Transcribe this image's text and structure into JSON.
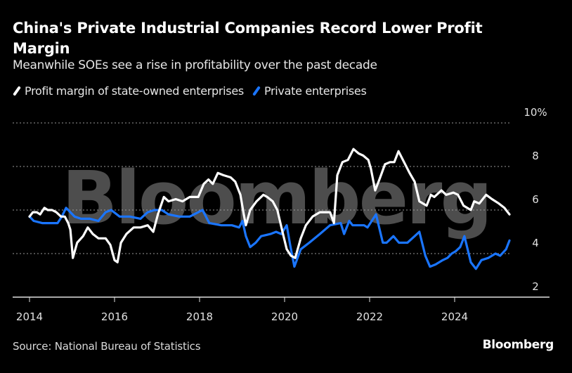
{
  "header": {
    "title": "China's Private Industrial Companies Record Lower Profit Margin",
    "subtitle": "Meanwhile SOEs see a rise in profitability over the past decade"
  },
  "footer": {
    "source": "Source: National Bureau of Statistics",
    "brand": "Bloomberg"
  },
  "watermark": "Bloomberg",
  "chart_data": {
    "type": "line",
    "title": "China's Private Industrial Companies Record Lower Profit Margin",
    "subtitle": "Meanwhile SOEs see a rise in profitability over the past decade",
    "xlabel": "",
    "ylabel": "",
    "xlim": [
      2013.95,
      2025.6
    ],
    "ylim": [
      2,
      10
    ],
    "x_ticks": [
      2014,
      2016,
      2018,
      2020,
      2022,
      2024
    ],
    "x_tick_labels": [
      "2014",
      "2016",
      "2018",
      "2020",
      "2022",
      "2024"
    ],
    "y_ticks": [
      2,
      4,
      6,
      8,
      10
    ],
    "y_tick_labels": [
      "2",
      "4",
      "6",
      "8",
      "10%"
    ],
    "grid": true,
    "legend_position": "top-left",
    "series": [
      {
        "name": "Profit margin of state-owned enterprises",
        "color": "#ffffff",
        "points": [
          [
            2014.0,
            5.7
          ],
          [
            2014.08,
            5.9
          ],
          [
            2014.17,
            5.9
          ],
          [
            2014.25,
            5.8
          ],
          [
            2014.35,
            6.1
          ],
          [
            2014.43,
            6.0
          ],
          [
            2014.53,
            6.0
          ],
          [
            2014.63,
            5.9
          ],
          [
            2014.74,
            5.7
          ],
          [
            2014.83,
            5.7
          ],
          [
            2014.91,
            5.4
          ],
          [
            2014.96,
            5.1
          ],
          [
            2015.02,
            3.8
          ],
          [
            2015.12,
            4.5
          ],
          [
            2015.26,
            4.8
          ],
          [
            2015.37,
            5.2
          ],
          [
            2015.49,
            4.9
          ],
          [
            2015.62,
            4.7
          ],
          [
            2015.79,
            4.7
          ],
          [
            2015.9,
            4.4
          ],
          [
            2016.0,
            3.7
          ],
          [
            2016.07,
            3.6
          ],
          [
            2016.15,
            4.5
          ],
          [
            2016.28,
            4.9
          ],
          [
            2016.45,
            5.2
          ],
          [
            2016.61,
            5.2
          ],
          [
            2016.78,
            5.3
          ],
          [
            2016.91,
            5.0
          ],
          [
            2017.02,
            5.8
          ],
          [
            2017.16,
            6.6
          ],
          [
            2017.27,
            6.4
          ],
          [
            2017.44,
            6.5
          ],
          [
            2017.6,
            6.4
          ],
          [
            2017.77,
            6.6
          ],
          [
            2017.97,
            6.6
          ],
          [
            2018.1,
            7.2
          ],
          [
            2018.21,
            7.4
          ],
          [
            2018.31,
            7.2
          ],
          [
            2018.43,
            7.7
          ],
          [
            2018.56,
            7.6
          ],
          [
            2018.73,
            7.5
          ],
          [
            2018.84,
            7.3
          ],
          [
            2018.96,
            6.7
          ],
          [
            2019.04,
            5.8
          ],
          [
            2019.09,
            5.3
          ],
          [
            2019.19,
            6.0
          ],
          [
            2019.34,
            6.4
          ],
          [
            2019.5,
            6.7
          ],
          [
            2019.59,
            6.6
          ],
          [
            2019.72,
            6.4
          ],
          [
            2019.83,
            6.0
          ],
          [
            2019.95,
            5.0
          ],
          [
            2020.05,
            4.2
          ],
          [
            2020.15,
            3.9
          ],
          [
            2020.25,
            3.8
          ],
          [
            2020.38,
            4.7
          ],
          [
            2020.5,
            5.3
          ],
          [
            2020.66,
            5.7
          ],
          [
            2020.83,
            5.9
          ],
          [
            2020.94,
            5.9
          ],
          [
            2021.07,
            5.9
          ],
          [
            2021.16,
            5.4
          ],
          [
            2021.24,
            7.6
          ],
          [
            2021.36,
            8.2
          ],
          [
            2021.49,
            8.3
          ],
          [
            2021.62,
            8.8
          ],
          [
            2021.74,
            8.6
          ],
          [
            2021.85,
            8.5
          ],
          [
            2021.97,
            8.3
          ],
          [
            2022.03,
            7.9
          ],
          [
            2022.13,
            6.9
          ],
          [
            2022.23,
            7.4
          ],
          [
            2022.36,
            8.1
          ],
          [
            2022.48,
            8.2
          ],
          [
            2022.58,
            8.2
          ],
          [
            2022.68,
            8.7
          ],
          [
            2022.81,
            8.2
          ],
          [
            2022.94,
            7.7
          ],
          [
            2023.06,
            7.3
          ],
          [
            2023.17,
            6.4
          ],
          [
            2023.34,
            6.2
          ],
          [
            2023.44,
            6.7
          ],
          [
            2023.52,
            6.6
          ],
          [
            2023.69,
            6.9
          ],
          [
            2023.8,
            6.7
          ],
          [
            2023.97,
            6.8
          ],
          [
            2024.08,
            6.7
          ],
          [
            2024.21,
            6.2
          ],
          [
            2024.38,
            6.0
          ],
          [
            2024.46,
            6.4
          ],
          [
            2024.58,
            6.3
          ],
          [
            2024.74,
            6.7
          ],
          [
            2024.88,
            6.5
          ],
          [
            2025.04,
            6.3
          ],
          [
            2025.17,
            6.1
          ],
          [
            2025.29,
            5.8
          ]
        ]
      },
      {
        "name": "Private enterprises",
        "color": "#1a75ff",
        "points": [
          [
            2014.0,
            5.7
          ],
          [
            2014.1,
            5.5
          ],
          [
            2014.3,
            5.4
          ],
          [
            2014.55,
            5.4
          ],
          [
            2014.66,
            5.4
          ],
          [
            2014.76,
            5.7
          ],
          [
            2014.86,
            6.1
          ],
          [
            2014.96,
            5.9
          ],
          [
            2015.06,
            5.7
          ],
          [
            2015.21,
            5.6
          ],
          [
            2015.42,
            5.6
          ],
          [
            2015.62,
            5.5
          ],
          [
            2015.79,
            5.9
          ],
          [
            2015.92,
            6.0
          ],
          [
            2016.12,
            5.7
          ],
          [
            2016.36,
            5.7
          ],
          [
            2016.61,
            5.6
          ],
          [
            2016.78,
            5.9
          ],
          [
            2016.94,
            6.0
          ],
          [
            2017.11,
            6.0
          ],
          [
            2017.27,
            5.8
          ],
          [
            2017.52,
            5.7
          ],
          [
            2017.77,
            5.7
          ],
          [
            2017.97,
            5.9
          ],
          [
            2018.07,
            6.0
          ],
          [
            2018.23,
            5.4
          ],
          [
            2018.51,
            5.3
          ],
          [
            2018.76,
            5.3
          ],
          [
            2018.93,
            5.2
          ],
          [
            2019.01,
            5.5
          ],
          [
            2019.09,
            4.8
          ],
          [
            2019.19,
            4.3
          ],
          [
            2019.32,
            4.5
          ],
          [
            2019.45,
            4.8
          ],
          [
            2019.67,
            4.9
          ],
          [
            2019.8,
            5.0
          ],
          [
            2019.92,
            4.9
          ],
          [
            2020.05,
            5.3
          ],
          [
            2020.13,
            4.4
          ],
          [
            2020.23,
            3.4
          ],
          [
            2020.38,
            4.2
          ],
          [
            2020.58,
            4.5
          ],
          [
            2020.83,
            4.9
          ],
          [
            2021.07,
            5.3
          ],
          [
            2021.32,
            5.4
          ],
          [
            2021.4,
            4.9
          ],
          [
            2021.52,
            5.5
          ],
          [
            2021.6,
            5.3
          ],
          [
            2021.87,
            5.3
          ],
          [
            2021.95,
            5.2
          ],
          [
            2022.15,
            5.8
          ],
          [
            2022.31,
            4.5
          ],
          [
            2022.4,
            4.5
          ],
          [
            2022.56,
            4.8
          ],
          [
            2022.69,
            4.5
          ],
          [
            2022.89,
            4.5
          ],
          [
            2023.06,
            4.8
          ],
          [
            2023.17,
            5.0
          ],
          [
            2023.31,
            3.9
          ],
          [
            2023.42,
            3.4
          ],
          [
            2023.55,
            3.5
          ],
          [
            2023.72,
            3.7
          ],
          [
            2023.83,
            3.8
          ],
          [
            2023.93,
            4.0
          ],
          [
            2024.02,
            4.1
          ],
          [
            2024.13,
            4.3
          ],
          [
            2024.23,
            4.8
          ],
          [
            2024.38,
            3.6
          ],
          [
            2024.5,
            3.3
          ],
          [
            2024.63,
            3.7
          ],
          [
            2024.79,
            3.8
          ],
          [
            2024.96,
            4.0
          ],
          [
            2025.07,
            3.9
          ],
          [
            2025.21,
            4.2
          ],
          [
            2025.29,
            4.6
          ]
        ]
      }
    ]
  }
}
